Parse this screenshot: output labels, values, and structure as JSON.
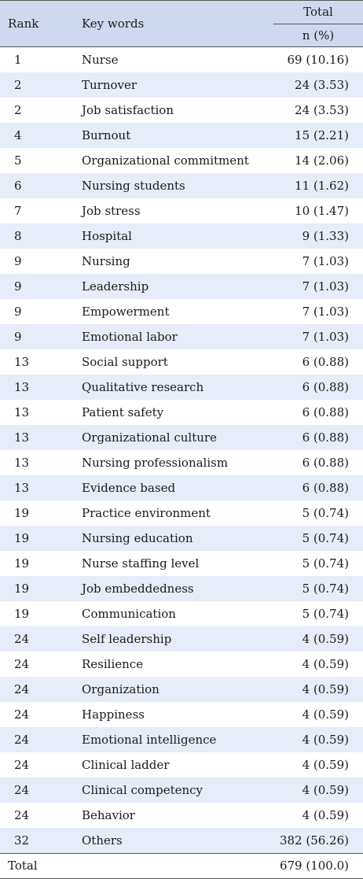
{
  "header": {
    "rank": "Rank",
    "keywords": "Key words",
    "total": "Total",
    "n_pct": "n (%)"
  },
  "rows": [
    {
      "rank": "1",
      "keyword": "Nurse",
      "value": "69 (10.16)"
    },
    {
      "rank": "2",
      "keyword": "Turnover",
      "value": "24 (3.53)"
    },
    {
      "rank": "2",
      "keyword": "Job satisfaction",
      "value": "24 (3.53)"
    },
    {
      "rank": "4",
      "keyword": "Burnout",
      "value": "15 (2.21)"
    },
    {
      "rank": "5",
      "keyword": "Organizational commitment",
      "value": "14 (2.06)"
    },
    {
      "rank": "6",
      "keyword": "Nursing students",
      "value": "11 (1.62)"
    },
    {
      "rank": "7",
      "keyword": "Job stress",
      "value": "10 (1.47)"
    },
    {
      "rank": "8",
      "keyword": "Hospital",
      "value": "9 (1.33)"
    },
    {
      "rank": "9",
      "keyword": "Nursing",
      "value": "7 (1.03)"
    },
    {
      "rank": "9",
      "keyword": "Leadership",
      "value": "7 (1.03)"
    },
    {
      "rank": "9",
      "keyword": "Empowerment",
      "value": "7 (1.03)"
    },
    {
      "rank": "9",
      "keyword": "Emotional labor",
      "value": "7 (1.03)"
    },
    {
      "rank": "13",
      "keyword": "Social support",
      "value": "6 (0.88)"
    },
    {
      "rank": "13",
      "keyword": "Qualitative research",
      "value": "6 (0.88)"
    },
    {
      "rank": "13",
      "keyword": "Patient safety",
      "value": "6 (0.88)"
    },
    {
      "rank": "13",
      "keyword": "Organizational culture",
      "value": "6 (0.88)"
    },
    {
      "rank": "13",
      "keyword": "Nursing professionalism",
      "value": "6 (0.88)"
    },
    {
      "rank": "13",
      "keyword": "Evidence based",
      "value": "6 (0.88)"
    },
    {
      "rank": "19",
      "keyword": "Practice environment",
      "value": "5 (0.74)"
    },
    {
      "rank": "19",
      "keyword": "Nursing education",
      "value": "5 (0.74)"
    },
    {
      "rank": "19",
      "keyword": "Nurse staffing level",
      "value": "5 (0.74)"
    },
    {
      "rank": "19",
      "keyword": "Job embeddedness",
      "value": "5 (0.74)"
    },
    {
      "rank": "19",
      "keyword": "Communication",
      "value": "5 (0.74)"
    },
    {
      "rank": "24",
      "keyword": "Self leadership",
      "value": "4 (0.59)"
    },
    {
      "rank": "24",
      "keyword": "Resilience",
      "value": "4 (0.59)"
    },
    {
      "rank": "24",
      "keyword": "Organization",
      "value": "4 (0.59)"
    },
    {
      "rank": "24",
      "keyword": "Happiness",
      "value": "4 (0.59)"
    },
    {
      "rank": "24",
      "keyword": "Emotional intelligence",
      "value": "4 (0.59)"
    },
    {
      "rank": "24",
      "keyword": "Clinical ladder",
      "value": "4 (0.59)"
    },
    {
      "rank": "24",
      "keyword": "Clinical competency",
      "value": "4 (0.59)"
    },
    {
      "rank": "24",
      "keyword": "Behavior",
      "value": "4 (0.59)"
    },
    {
      "rank": "32",
      "keyword": "Others",
      "value": "382 (56.26)"
    }
  ],
  "total_row": {
    "label": "Total",
    "value": "679 (100.0)"
  },
  "colors": {
    "header_bg": "#cfd9ee",
    "stripe_bg": "#e6ecf8"
  }
}
